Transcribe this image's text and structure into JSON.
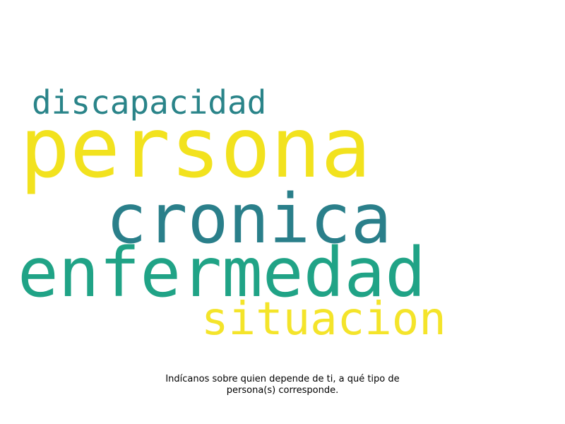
{
  "wordcloud": {
    "words": [
      {
        "text": "persona",
        "color": "#f2e21e"
      },
      {
        "text": "discapacidad",
        "color": "#2a8489"
      },
      {
        "text": "cronica",
        "color": "#2a7f8a"
      },
      {
        "text": "enfermedad",
        "color": "#20a386"
      },
      {
        "text": "situacion",
        "color": "#f4e42a"
      }
    ]
  },
  "caption": {
    "line1": "Indícanos sobre quien depende de ti, a qué tipo de",
    "line2": "persona(s) corresponde."
  }
}
